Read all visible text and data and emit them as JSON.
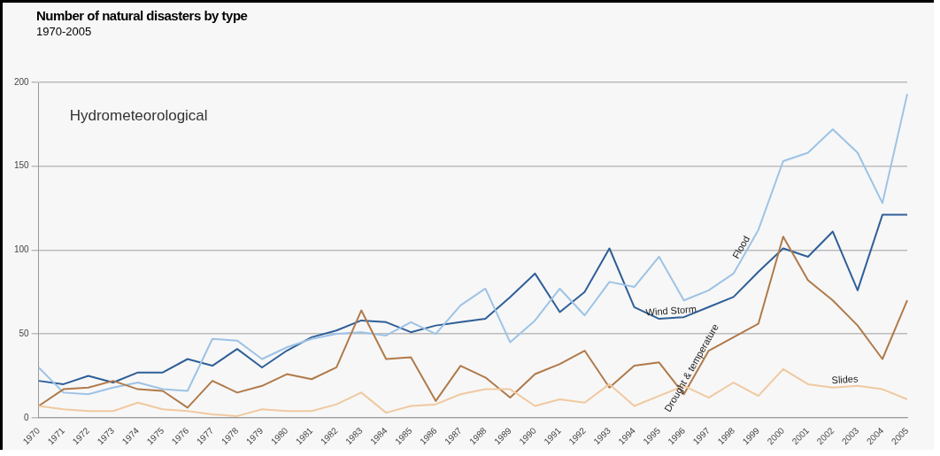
{
  "chart_data": {
    "type": "line",
    "title": "Number of natural disasters by type",
    "subtitle": "1970-2005",
    "annotations": [
      "Hydrometeorological"
    ],
    "categories": [
      "1970",
      "1971",
      "1972",
      "1973",
      "1974",
      "1975",
      "1976",
      "1977",
      "1978",
      "1979",
      "1980",
      "1981",
      "1982",
      "1983",
      "1984",
      "1985",
      "1986",
      "1987",
      "1988",
      "1989",
      "1990",
      "1991",
      "1992",
      "1993",
      "1994",
      "1995",
      "1996",
      "1997",
      "1998",
      "1999",
      "2000",
      "2001",
      "2002",
      "2003",
      "2004",
      "2005"
    ],
    "series": [
      {
        "name": "Slides",
        "color": "#f0c9a0",
        "values": [
          7,
          5,
          4,
          4,
          9,
          5,
          4,
          2,
          1,
          5,
          4,
          4,
          8,
          15,
          3,
          7,
          8,
          14,
          17,
          17,
          7,
          11,
          9,
          20,
          7,
          13,
          19,
          12,
          21,
          13,
          29,
          20,
          18,
          19,
          17,
          11
        ]
      },
      {
        "name": "Drought & temperature",
        "color": "#b07a4a",
        "values": [
          7,
          17,
          18,
          22,
          17,
          16,
          6,
          22,
          15,
          19,
          26,
          23,
          30,
          64,
          35,
          36,
          10,
          31,
          24,
          12,
          26,
          32,
          40,
          18,
          31,
          33,
          14,
          40,
          48,
          56,
          108,
          82,
          70,
          55,
          35,
          70
        ]
      },
      {
        "name": "Flood",
        "color": "#9dc3e6",
        "values": [
          30,
          15,
          14,
          18,
          21,
          17,
          16,
          47,
          46,
          35,
          42,
          47,
          50,
          51,
          49,
          57,
          50,
          67,
          77,
          45,
          58,
          77,
          61,
          81,
          78,
          96,
          70,
          76,
          86,
          112,
          153,
          158,
          172,
          158,
          128,
          193
        ]
      },
      {
        "name": "Wind Storm",
        "color": "#2f5f98",
        "values": [
          22,
          20,
          25,
          21,
          27,
          27,
          35,
          31,
          41,
          30,
          40,
          48,
          52,
          58,
          57,
          51,
          55,
          57,
          59,
          72,
          86,
          63,
          75,
          101,
          66,
          59,
          60,
          66,
          72,
          87,
          101,
          96,
          111,
          76,
          121,
          121
        ]
      }
    ],
    "ylim": [
      0,
      200
    ],
    "yticks": [
      0,
      50,
      100,
      150,
      200
    ],
    "grid": "y",
    "legend": false,
    "marker": "none",
    "line_style": "solid"
  }
}
